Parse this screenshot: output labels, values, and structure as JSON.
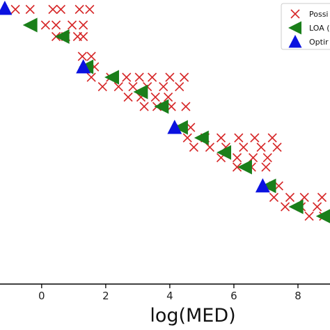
{
  "chart_data": {
    "type": "scatter",
    "xlabel": "log(MED)",
    "ylabel": "",
    "xlim": [
      -1.3,
      9.0
    ],
    "ylim": [
      -1.2,
      12.4
    ],
    "x_ticks": [
      "0",
      "2",
      "4",
      "6",
      "8"
    ],
    "x_tick_values": [
      0,
      2,
      4,
      6,
      8
    ],
    "grid": false,
    "legend_position": "top-right",
    "series": [
      {
        "name": "Possi",
        "marker": "x",
        "color": "#d62728",
        "x": [
          -0.82,
          -0.36,
          0.35,
          0.6,
          1.18,
          1.5,
          0.12,
          0.45,
          0.95,
          1.3,
          0.45,
          0.75,
          1.12,
          1.3,
          1.27,
          1.55,
          1.45,
          1.65,
          1.55,
          2.15,
          2.65,
          3.05,
          3.45,
          4.0,
          4.45,
          1.9,
          2.4,
          2.85,
          3.3,
          3.8,
          4.3,
          2.7,
          3.1,
          3.55,
          3.95,
          3.2,
          3.6,
          4.05,
          4.5,
          4.3,
          4.65,
          4.55,
          5.1,
          5.6,
          6.15,
          6.65,
          7.2,
          4.75,
          5.25,
          5.75,
          6.3,
          6.85,
          7.35,
          5.6,
          6.1,
          6.6,
          7.05,
          6.1,
          6.55,
          7.0,
          7.0,
          7.4,
          7.25,
          7.75,
          8.2,
          7.6,
          8.1,
          8.6,
          8.35,
          8.8,
          8.75
        ],
        "y": [
          11.95,
          11.95,
          11.95,
          11.95,
          11.95,
          11.95,
          11.2,
          11.2,
          11.2,
          11.2,
          10.65,
          10.65,
          10.65,
          10.65,
          9.7,
          9.7,
          9.2,
          9.2,
          8.7,
          8.7,
          8.7,
          8.7,
          8.7,
          8.7,
          8.7,
          8.25,
          8.25,
          8.25,
          8.25,
          8.25,
          8.25,
          7.75,
          7.75,
          7.75,
          7.75,
          7.3,
          7.3,
          7.3,
          7.3,
          6.3,
          6.3,
          5.8,
          5.8,
          5.8,
          5.8,
          5.8,
          5.8,
          5.35,
          5.35,
          5.35,
          5.35,
          5.35,
          5.35,
          4.85,
          4.85,
          4.85,
          4.85,
          4.4,
          4.4,
          4.4,
          3.5,
          3.5,
          2.95,
          2.95,
          2.95,
          2.5,
          2.5,
          2.5,
          2.05,
          2.05,
          2.95
        ]
      },
      {
        "name": "LOA",
        "marker": "triangle-left",
        "color": "#1a7f1a",
        "x": [
          -0.35,
          0.65,
          1.4,
          2.2,
          3.1,
          3.75,
          4.35,
          5.0,
          5.7,
          6.35,
          7.1,
          7.95,
          8.8
        ],
        "y": [
          11.2,
          10.65,
          9.2,
          8.7,
          8.0,
          7.3,
          6.3,
          5.8,
          5.1,
          4.4,
          3.5,
          2.5,
          2.05
        ]
      },
      {
        "name": "Optir",
        "marker": "triangle-up",
        "color": "#0b12e0",
        "x": [
          -1.15,
          1.3,
          4.15,
          6.9
        ],
        "y": [
          12.0,
          9.2,
          6.3,
          3.5
        ]
      }
    ]
  },
  "legend": {
    "items": [
      {
        "label": "Possi",
        "marker": "x",
        "color": "#d62728"
      },
      {
        "label": "LOA (",
        "marker": "triangle-left",
        "color": "#1a7f1a"
      },
      {
        "label": "Optir",
        "marker": "triangle-up",
        "color": "#0b12e0"
      }
    ]
  }
}
